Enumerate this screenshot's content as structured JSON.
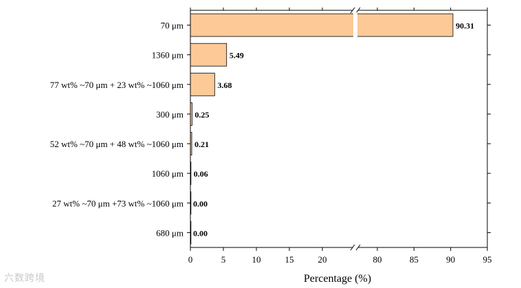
{
  "chart_data": {
    "type": "bar",
    "orientation": "horizontal",
    "title": "",
    "xlabel": "Percentage (%)",
    "ylabel": "",
    "categories": [
      "70 μm",
      "1360 μm",
      "77 wt% ~70 μm + 23 wt% ~1060 μm",
      "300 μm",
      "52 wt% ~70 μm + 48 wt% ~1060 μm",
      "1060 μm",
      "27 wt% ~70 μm +73 wt% ~1060 μm",
      "680 μm"
    ],
    "values": [
      90.31,
      5.49,
      3.68,
      0.25,
      0.21,
      0.06,
      0.0,
      0.0
    ],
    "value_labels": [
      "90.31",
      "5.49",
      "3.68",
      "0.25",
      "0.21",
      "0.06",
      "0.00",
      "0.00"
    ],
    "x_axis": {
      "broken": true,
      "segments": [
        [
          0,
          25
        ],
        [
          77,
          95
        ]
      ],
      "ticks_low": [
        "0",
        "5",
        "10",
        "15",
        "20"
      ],
      "ticks_high": [
        "80",
        "85",
        "90",
        "95"
      ]
    },
    "bar_color": "#fcc997",
    "bar_edge_color": "#000000",
    "grid": false
  },
  "watermark": "六数跨境"
}
